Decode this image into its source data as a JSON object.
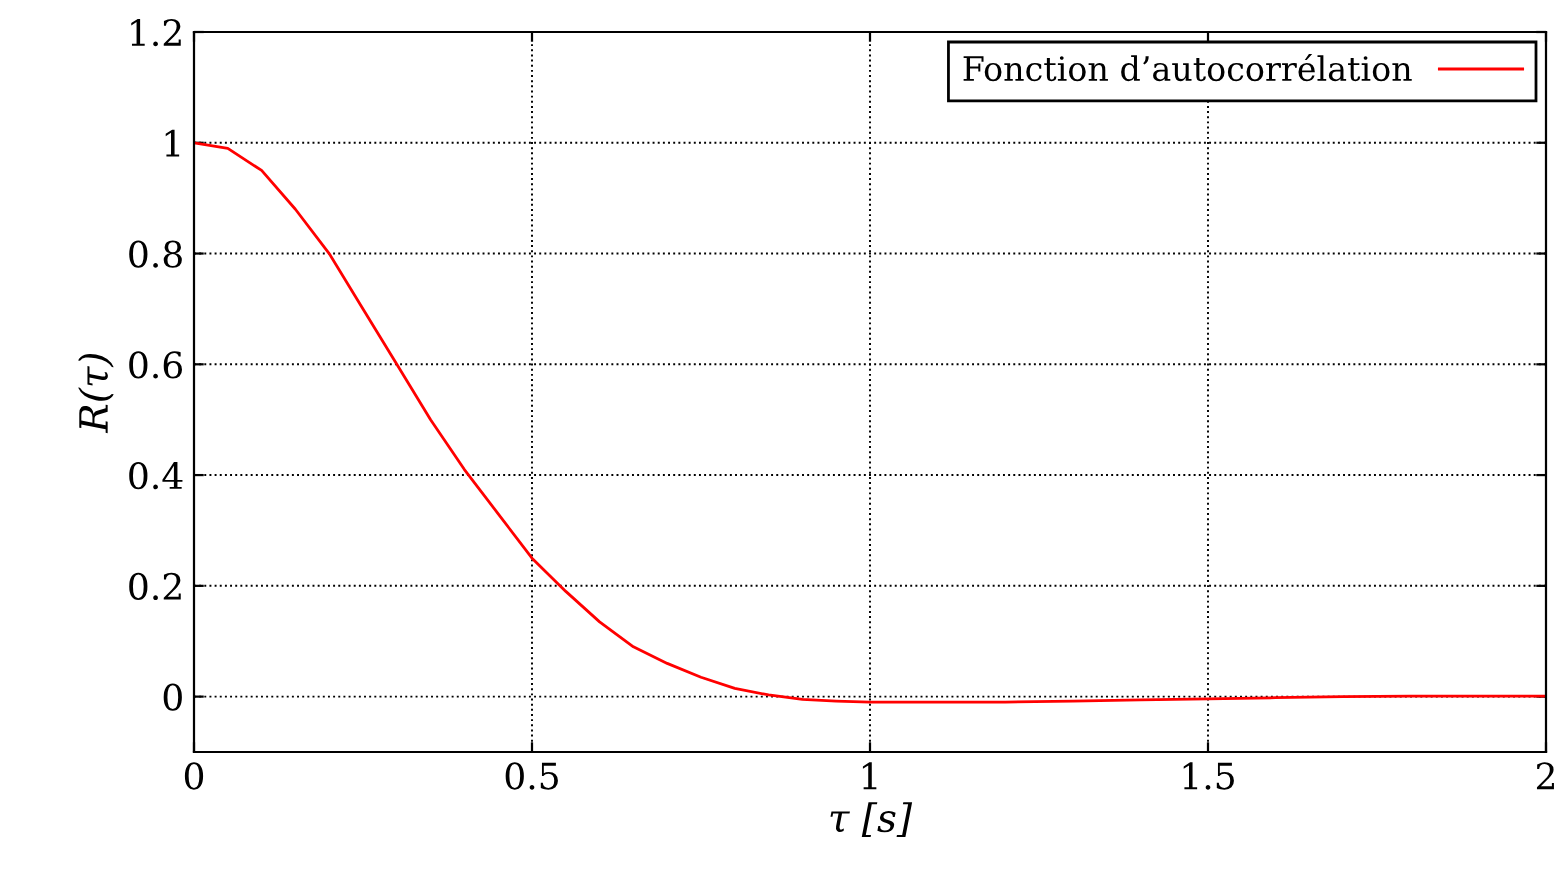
{
  "chart_data": {
    "type": "line",
    "xlabel": "τ [s]",
    "ylabel": "R(τ)",
    "xlim": [
      0,
      2
    ],
    "ylim": [
      -0.1,
      1.2
    ],
    "xticks": [
      0,
      0.5,
      1,
      1.5,
      2
    ],
    "yticks": [
      0,
      0.2,
      0.4,
      0.6,
      0.8,
      1,
      1.2
    ],
    "grid": true,
    "legend": "top right",
    "line_style": "solid",
    "marker": "none",
    "series": [
      {
        "name": "Fonction d’autocorrélation",
        "color": "#ff0000",
        "x": [
          0,
          0.05,
          0.1,
          0.15,
          0.2,
          0.25,
          0.3,
          0.35,
          0.4,
          0.45,
          0.5,
          0.55,
          0.6,
          0.65,
          0.7,
          0.75,
          0.8,
          0.85,
          0.9,
          0.95,
          1.0,
          1.1,
          1.2,
          1.3,
          1.4,
          1.5,
          1.6,
          1.7,
          1.8,
          1.9,
          2.0
        ],
        "values": [
          1,
          0.99,
          0.95,
          0.88,
          0.8,
          0.7,
          0.6,
          0.5,
          0.41,
          0.33,
          0.25,
          0.19,
          0.135,
          0.09,
          0.06,
          0.035,
          0.015,
          0.003,
          -0.005,
          -0.008,
          -0.01,
          -0.01,
          -0.01,
          -0.008,
          -0.006,
          -0.004,
          -0.002,
          0,
          0.001,
          0.001,
          0.001
        ]
      }
    ]
  }
}
